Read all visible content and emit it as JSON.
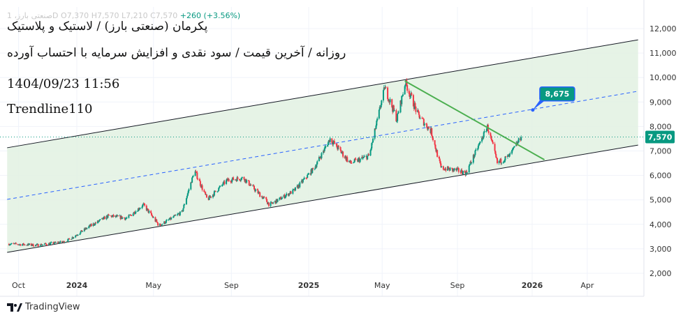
{
  "header": {
    "ohlc_prefix": "صنعتی بارز، 1D",
    "open": "O7,370",
    "high": "H7,570",
    "low": "L7,210",
    "close": "C7,570",
    "change": "+260 (+3.56%)"
  },
  "overlay": {
    "title": "پکرمان (صنعتی بارز) / لاستیک و پلاستیک",
    "subtitle": "روزانه / آخرین قیمت / سود نقدی و افزایش سرمایه با احتساب آورده",
    "datetime": "1404/09/23 11:56",
    "tag": "Trendline110"
  },
  "brand": "TradingView",
  "chart_data": {
    "type": "candlestick",
    "title": "",
    "xlabel": "",
    "ylabel": "",
    "ylim": [
      1800,
      12600
    ],
    "y_ticks": [
      "2,000",
      "3,000",
      "4,000",
      "5,000",
      "6,000",
      "7,000",
      "8,000",
      "9,000",
      "10,000",
      "11,000",
      "12,000"
    ],
    "y_tick_values": [
      2000,
      3000,
      4000,
      5000,
      6000,
      7000,
      8000,
      9000,
      10000,
      11000,
      12000
    ],
    "x_ticks": [
      {
        "label": "Oct",
        "date": "2023-10-01"
      },
      {
        "label": "2024",
        "date": "2024-01-01"
      },
      {
        "label": "May",
        "date": "2024-05-01"
      },
      {
        "label": "Sep",
        "date": "2024-09-01"
      },
      {
        "label": "2025",
        "date": "2025-01-01"
      },
      {
        "label": "May",
        "date": "2025-05-01"
      },
      {
        "label": "Sep",
        "date": "2025-09-01"
      },
      {
        "label": "2026",
        "date": "2026-01-01"
      },
      {
        "label": "Apr",
        "date": "2026-04-01"
      }
    ],
    "grid": true,
    "close_path": [
      [
        "2023-09-15",
        3200
      ],
      [
        "2023-11-01",
        3150
      ],
      [
        "2023-12-15",
        3300
      ],
      [
        "2024-01-20",
        3900
      ],
      [
        "2024-02-20",
        4350
      ],
      [
        "2024-03-20",
        4250
      ],
      [
        "2024-04-15",
        4800
      ],
      [
        "2024-05-10",
        3950
      ],
      [
        "2024-06-15",
        4500
      ],
      [
        "2024-07-05",
        6200
      ],
      [
        "2024-07-25",
        5000
      ],
      [
        "2024-08-25",
        5800
      ],
      [
        "2024-09-20",
        5900
      ],
      [
        "2024-11-01",
        4800
      ],
      [
        "2024-12-10",
        5400
      ],
      [
        "2025-01-10",
        6300
      ],
      [
        "2025-02-05",
        7500
      ],
      [
        "2025-03-10",
        6500
      ],
      [
        "2025-04-10",
        6800
      ],
      [
        "2025-05-05",
        9600
      ],
      [
        "2025-05-25",
        8300
      ],
      [
        "2025-06-08",
        9800
      ],
      [
        "2025-06-28",
        8500
      ],
      [
        "2025-07-20",
        7800
      ],
      [
        "2025-08-05",
        6300
      ],
      [
        "2025-09-01",
        6200
      ],
      [
        "2025-09-15",
        6100
      ],
      [
        "2025-10-20",
        8000
      ],
      [
        "2025-11-05",
        6500
      ],
      [
        "2025-11-25",
        6800
      ],
      [
        "2025-12-14",
        7570
      ]
    ],
    "last_price": 7570,
    "last_price_label": "7,570",
    "up_color": "#089981",
    "down_color": "#f23645",
    "drawings": {
      "channel_upper": [
        [
          "2023-09-13",
          7130
        ],
        [
          "2026-06-23",
          11540
        ]
      ],
      "channel_lower": [
        [
          "2023-09-13",
          2855
        ],
        [
          "2026-06-23",
          7240
        ]
      ],
      "channel_mid": [
        [
          "2023-09-13",
          5020
        ],
        [
          "2026-06-23",
          9440
        ]
      ],
      "trendline": [
        [
          "2025-06-07",
          9860
        ],
        [
          "2026-01-21",
          6640
        ]
      ],
      "callout": {
        "date": "2026-01-02",
        "price": 8675,
        "label": "8,675"
      },
      "channel_fill": "#e2f1e2",
      "trendline_color": "#4caf50",
      "mid_color": "#2962ff"
    }
  }
}
